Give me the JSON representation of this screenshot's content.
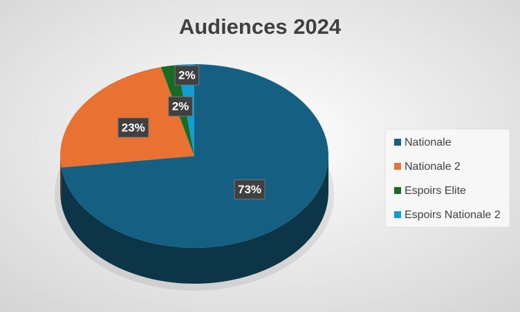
{
  "chart_data": {
    "type": "pie",
    "title": "Audiences 2024",
    "categories": [
      "Nationale",
      "Nationale 2",
      "Espoirs Elite",
      "Espoirs Nationale 2"
    ],
    "values": [
      73,
      23,
      2,
      2
    ],
    "value_labels": [
      "73%",
      "23%",
      "2%",
      "2%"
    ],
    "colors": [
      "#156082",
      "#e97132",
      "#196b24",
      "#0f9ed5"
    ],
    "legend": "right"
  }
}
